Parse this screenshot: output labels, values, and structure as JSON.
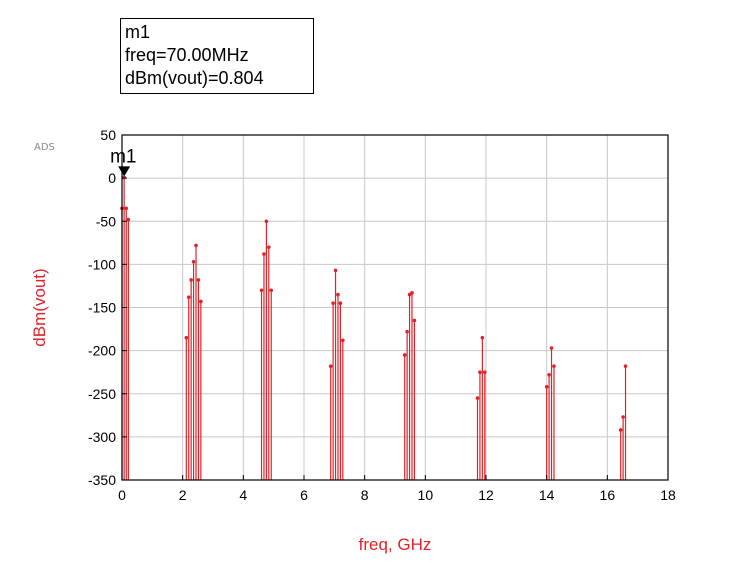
{
  "marker_box": {
    "name": "m1",
    "freq_line": "freq=70.00MHz",
    "value_line": "dBm(vout)=0.804"
  },
  "watermark": "ADS",
  "marker_label": "m1",
  "colors": {
    "trace": "#e0232a",
    "grid": "#c8c8c8",
    "axis": "#000000"
  },
  "chart_data": {
    "type": "bar",
    "style": "stem plot (spectrum lines with dot markers)",
    "xlabel": "freq, GHz",
    "ylabel": "dBm(vout)",
    "xlim": [
      0,
      18
    ],
    "ylim": [
      -350,
      50
    ],
    "xticks": [
      0,
      2,
      4,
      6,
      8,
      10,
      12,
      14,
      16,
      18
    ],
    "yticks": [
      50,
      0,
      -50,
      -100,
      -150,
      -200,
      -250,
      -300,
      -350
    ],
    "grid": true,
    "legend": "none",
    "marker": {
      "name": "m1",
      "x": 0.07,
      "y": 0.804
    },
    "series": [
      {
        "x": [
          0.0,
          0.07,
          0.14,
          0.21,
          2.12,
          2.2,
          2.28,
          2.36,
          2.44,
          2.52,
          2.6,
          4.6,
          4.68,
          4.76,
          4.84,
          4.92,
          6.88,
          6.96,
          7.04,
          7.12,
          7.2,
          7.28,
          9.32,
          9.4,
          9.48,
          9.56,
          9.64,
          11.72,
          11.8,
          11.88,
          11.96,
          14.0,
          14.08,
          14.16,
          14.24,
          16.44,
          16.52,
          16.6
        ],
        "y": [
          -35,
          0.804,
          -35,
          -48,
          -185,
          -138,
          -118,
          -97,
          -78,
          -118,
          -143,
          -130,
          -88,
          -50,
          -80,
          -130,
          -218,
          -145,
          -107,
          -135,
          -145,
          -188,
          -205,
          -178,
          -135,
          -133,
          -165,
          -255,
          -225,
          -185,
          -225,
          -242,
          -228,
          -197,
          -218,
          -292,
          -277,
          -218
        ]
      }
    ]
  }
}
